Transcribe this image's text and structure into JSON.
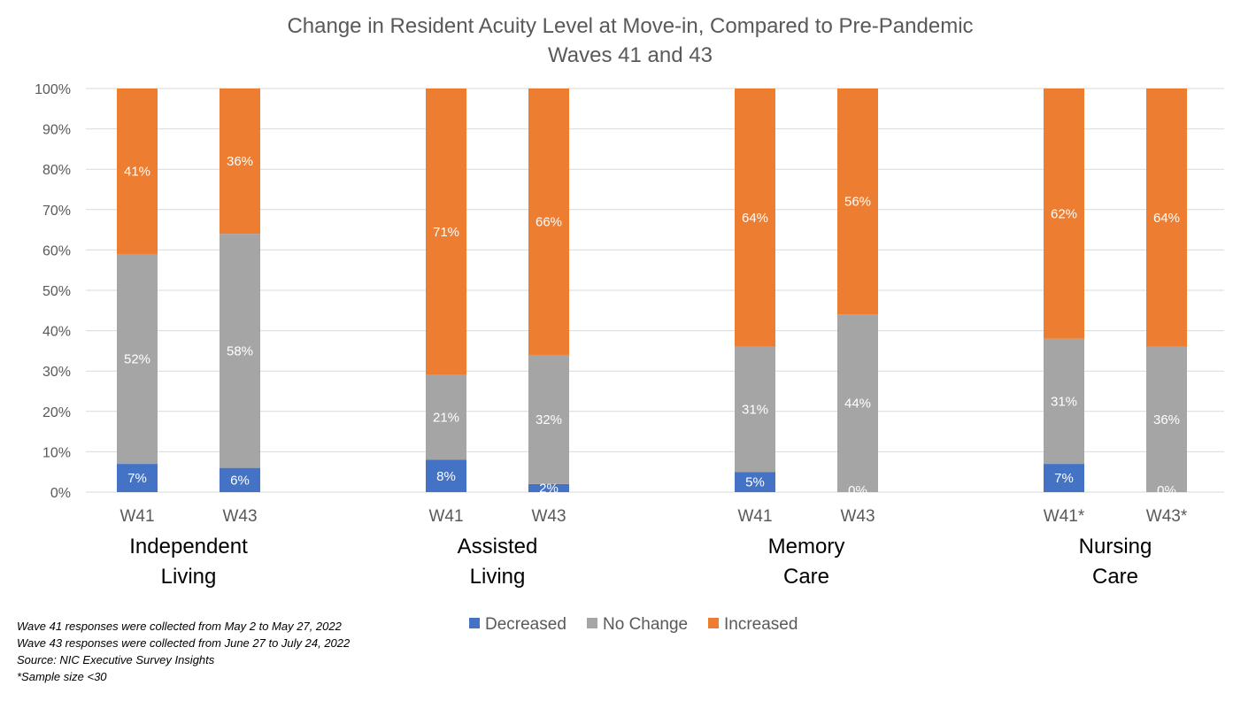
{
  "chart_data": {
    "type": "bar",
    "stacked": true,
    "percent_stacked": true,
    "title": "Change in Resident Acuity Level at Move-in, Compared to Pre-Pandemic",
    "subtitle": "Waves 41 and 43",
    "ylim": [
      0,
      100
    ],
    "yticks": [
      "0%",
      "10%",
      "20%",
      "30%",
      "40%",
      "50%",
      "60%",
      "70%",
      "80%",
      "90%",
      "100%"
    ],
    "grid": true,
    "legend_position": "bottom",
    "groups": [
      {
        "name_lines": [
          "Independent",
          "Living"
        ],
        "categories": [
          "W41",
          "W43"
        ]
      },
      {
        "name_lines": [
          "Assisted",
          "Living"
        ],
        "categories": [
          "W41",
          "W43"
        ]
      },
      {
        "name_lines": [
          "Memory",
          "Care"
        ],
        "categories": [
          "W41",
          "W43"
        ]
      },
      {
        "name_lines": [
          "Nursing",
          "Care"
        ],
        "categories": [
          "W41*",
          "W43*"
        ]
      }
    ],
    "series": [
      {
        "name": "Decreased",
        "color": "#4472c4",
        "values": [
          7,
          6,
          8,
          2,
          5,
          0,
          7,
          0
        ],
        "labels": [
          "7%",
          "6%",
          "8%",
          "2%",
          "5%",
          "0%",
          "7%",
          "0%"
        ]
      },
      {
        "name": "No Change",
        "color": "#a5a5a5",
        "values": [
          52,
          58,
          21,
          32,
          31,
          44,
          31,
          36
        ],
        "labels": [
          "52%",
          "58%",
          "21%",
          "32%",
          "31%",
          "44%",
          "31%",
          "36%"
        ]
      },
      {
        "name": "Increased",
        "color": "#ed7d31",
        "values": [
          41,
          36,
          71,
          66,
          64,
          56,
          62,
          64
        ],
        "labels": [
          "41%",
          "36%",
          "71%",
          "66%",
          "64%",
          "56%",
          "62%",
          "64%"
        ]
      }
    ]
  },
  "notes": [
    "Wave 41 responses were collected from May 2 to May 27, 2022",
    "Wave 43 responses were collected from June 27 to July 24, 2022",
    "Source: NIC Executive Survey Insights",
    "*Sample size <30"
  ]
}
